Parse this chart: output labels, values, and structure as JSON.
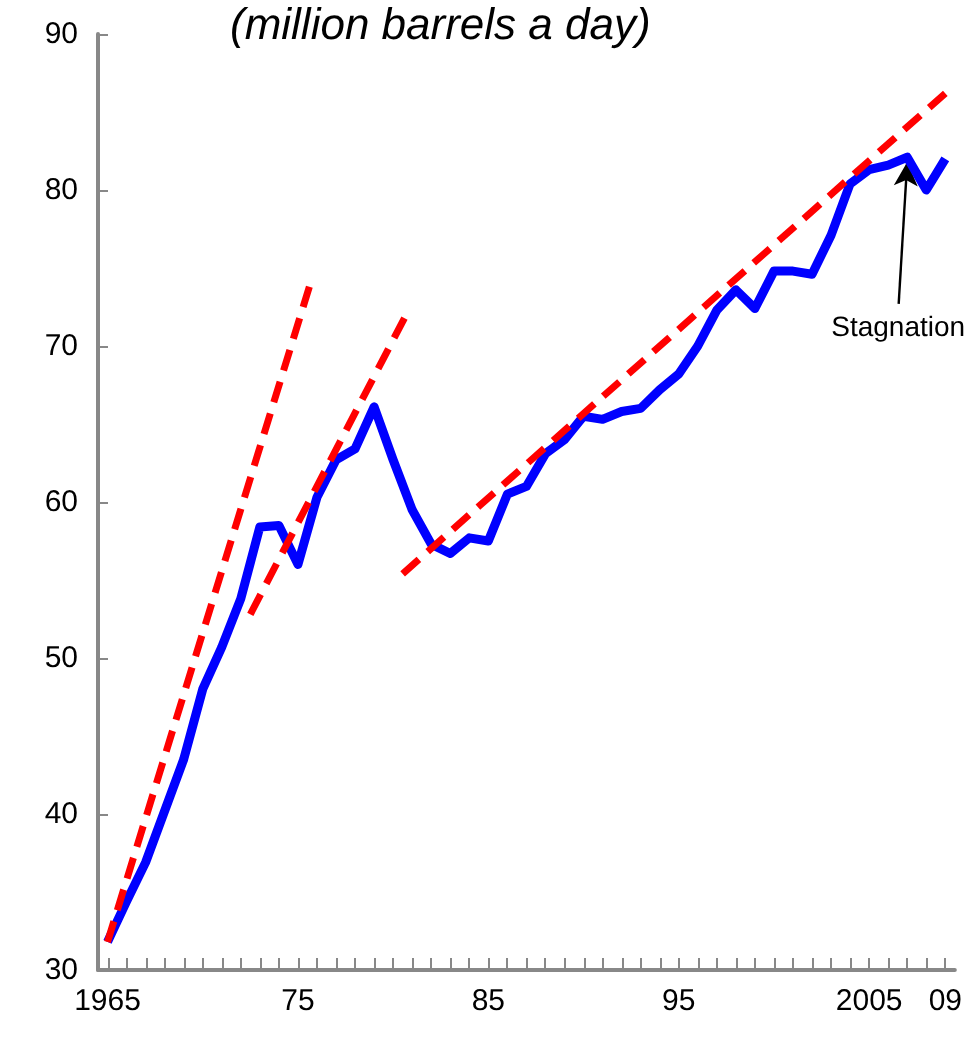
{
  "chart_data": {
    "type": "line",
    "title": "(million barrels a day)",
    "xlim": [
      1964.5,
      2009.5
    ],
    "ylim": [
      30,
      90
    ],
    "yticks": [
      30,
      40,
      50,
      60,
      70,
      80,
      90
    ],
    "xticks": [
      {
        "value": 1965,
        "label": "1965"
      },
      {
        "value": 1966,
        "label": null
      },
      {
        "value": 1967,
        "label": null
      },
      {
        "value": 1968,
        "label": null
      },
      {
        "value": 1969,
        "label": null
      },
      {
        "value": 1970,
        "label": null
      },
      {
        "value": 1971,
        "label": null
      },
      {
        "value": 1972,
        "label": null
      },
      {
        "value": 1973,
        "label": null
      },
      {
        "value": 1974,
        "label": null
      },
      {
        "value": 1975,
        "label": "75"
      },
      {
        "value": 1976,
        "label": null
      },
      {
        "value": 1977,
        "label": null
      },
      {
        "value": 1978,
        "label": null
      },
      {
        "value": 1979,
        "label": null
      },
      {
        "value": 1980,
        "label": null
      },
      {
        "value": 1981,
        "label": null
      },
      {
        "value": 1982,
        "label": null
      },
      {
        "value": 1983,
        "label": null
      },
      {
        "value": 1984,
        "label": null
      },
      {
        "value": 1985,
        "label": "85"
      },
      {
        "value": 1986,
        "label": null
      },
      {
        "value": 1987,
        "label": null
      },
      {
        "value": 1988,
        "label": null
      },
      {
        "value": 1989,
        "label": null
      },
      {
        "value": 1990,
        "label": null
      },
      {
        "value": 1991,
        "label": null
      },
      {
        "value": 1992,
        "label": null
      },
      {
        "value": 1993,
        "label": null
      },
      {
        "value": 1994,
        "label": null
      },
      {
        "value": 1995,
        "label": "95"
      },
      {
        "value": 1996,
        "label": null
      },
      {
        "value": 1997,
        "label": null
      },
      {
        "value": 1998,
        "label": null
      },
      {
        "value": 1999,
        "label": null
      },
      {
        "value": 2000,
        "label": null
      },
      {
        "value": 2001,
        "label": null
      },
      {
        "value": 2002,
        "label": null
      },
      {
        "value": 2003,
        "label": null
      },
      {
        "value": 2004,
        "label": null
      },
      {
        "value": 2005,
        "label": "2005"
      },
      {
        "value": 2006,
        "label": null
      },
      {
        "value": 2007,
        "label": null
      },
      {
        "value": 2008,
        "label": null
      },
      {
        "value": 2009,
        "label": "09"
      }
    ],
    "grid": false,
    "marker": "none",
    "series": [
      {
        "color": "#ff0000",
        "line_style": "dashed",
        "x": [
          1965,
          1975.6
        ],
        "values": [
          31.8,
          73.8
        ]
      },
      {
        "color": "#ff0000",
        "line_style": "dashed",
        "x": [
          1972.5,
          1980.6
        ],
        "values": [
          52.8,
          71.8
        ]
      },
      {
        "color": "#ff0000",
        "line_style": "dashed",
        "x": [
          1980.5,
          2009
        ],
        "values": [
          55.4,
          86.2
        ]
      },
      {
        "color": "#0000ff",
        "line_style": "solid",
        "x": [
          1965,
          1966,
          1967,
          1968,
          1969,
          1970,
          1971,
          1972,
          1973,
          1974,
          1975,
          1976,
          1977,
          1978,
          1979,
          1980,
          1981,
          1982,
          1983,
          1984,
          1985,
          1986,
          1987,
          1988,
          1989,
          1990,
          1991,
          1992,
          1993,
          1994,
          1995,
          1996,
          1997,
          1998,
          1999,
          2000,
          2001,
          2002,
          2003,
          2004,
          2005,
          2006,
          2007,
          2008,
          2009
        ],
        "values": [
          31.8,
          34.4,
          36.9,
          40.2,
          43.5,
          48.0,
          50.7,
          53.8,
          58.4,
          58.5,
          56.0,
          60.3,
          62.7,
          63.4,
          66.1,
          62.7,
          59.5,
          57.3,
          56.7,
          57.7,
          57.5,
          60.5,
          61.0,
          63.1,
          64.0,
          65.5,
          65.3,
          65.8,
          66.0,
          67.2,
          68.2,
          70.0,
          72.3,
          73.6,
          72.4,
          74.8,
          74.8,
          74.6,
          77.1,
          80.4,
          81.3,
          81.6,
          82.1,
          80.0,
          82.0
        ]
      }
    ],
    "annotations": [
      {
        "text": "Stagnation",
        "x": 2007,
        "y": 82.1
      }
    ]
  }
}
